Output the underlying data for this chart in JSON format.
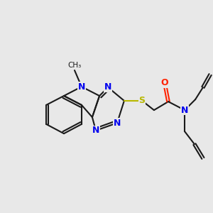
{
  "bg_color": "#e8e8e8",
  "bond_color": "#1a1a1a",
  "bond_lw": 1.5,
  "dbo": 0.06,
  "atom_colors": {
    "N": "#0000ee",
    "S": "#b8b800",
    "O": "#ff2200",
    "C": "#1a1a1a"
  },
  "fs": 9,
  "figsize": [
    3.0,
    3.0
  ],
  "dpi": 100
}
